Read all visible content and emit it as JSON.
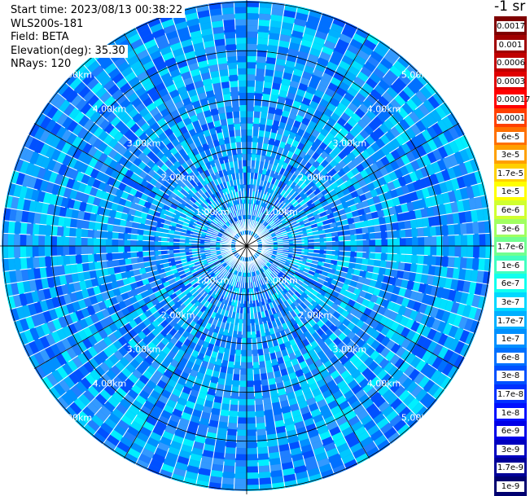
{
  "header": {
    "start_time": "Start time: 2023/08/13 00:38:22",
    "instrument": "WLS200s-181",
    "field": "Field: BETA",
    "elevation": "Elevation(deg): 35.30",
    "nrays": "NRays: 120"
  },
  "colorbar": {
    "units_label": "-1 sr",
    "ticks": [
      "0.0017",
      "0.001",
      "0.0006",
      "0.0003",
      "0.00017",
      "0.0001",
      "6e-5",
      "3e-5",
      "1.7e-5",
      "1e-5",
      "6e-6",
      "3e-6",
      "1.7e-6",
      "1e-6",
      "6e-7",
      "3e-7",
      "1.7e-7",
      "1e-7",
      "6e-8",
      "3e-8",
      "1.7e-8",
      "1e-8",
      "6e-9",
      "3e-9",
      "1.7e-9",
      "1e-9"
    ],
    "colors": [
      "#7f0000",
      "#a00000",
      "#c00000",
      "#e00000",
      "#ff0000",
      "#ff4000",
      "#ff7000",
      "#ffa000",
      "#ffd000",
      "#ffff00",
      "#d0ff30",
      "#a0ff60",
      "#70ff90",
      "#40ffc0",
      "#10ffee",
      "#00d8ff",
      "#00b0ff",
      "#0090ff",
      "#0070ff",
      "#0050ff",
      "#0030ff",
      "#0010ff",
      "#0000e8",
      "#0000c0",
      "#000098",
      "#000070"
    ]
  },
  "chart_data": {
    "type": "heatmap",
    "projection": "polar-ppi",
    "field": "BETA",
    "nrays": 120,
    "range_ring_labels": [
      "1.00km",
      "2.00km",
      "3.00km",
      "4.00km",
      "5.00km"
    ],
    "range_rings_km": [
      1,
      2,
      3,
      4,
      5
    ],
    "max_range_km": 5,
    "value_range": [
      "1e-9",
      "0.0017"
    ],
    "color_scale": "log",
    "dominant_values": "1e-8 to 1e-7 (blue to cyan) across the scan"
  }
}
